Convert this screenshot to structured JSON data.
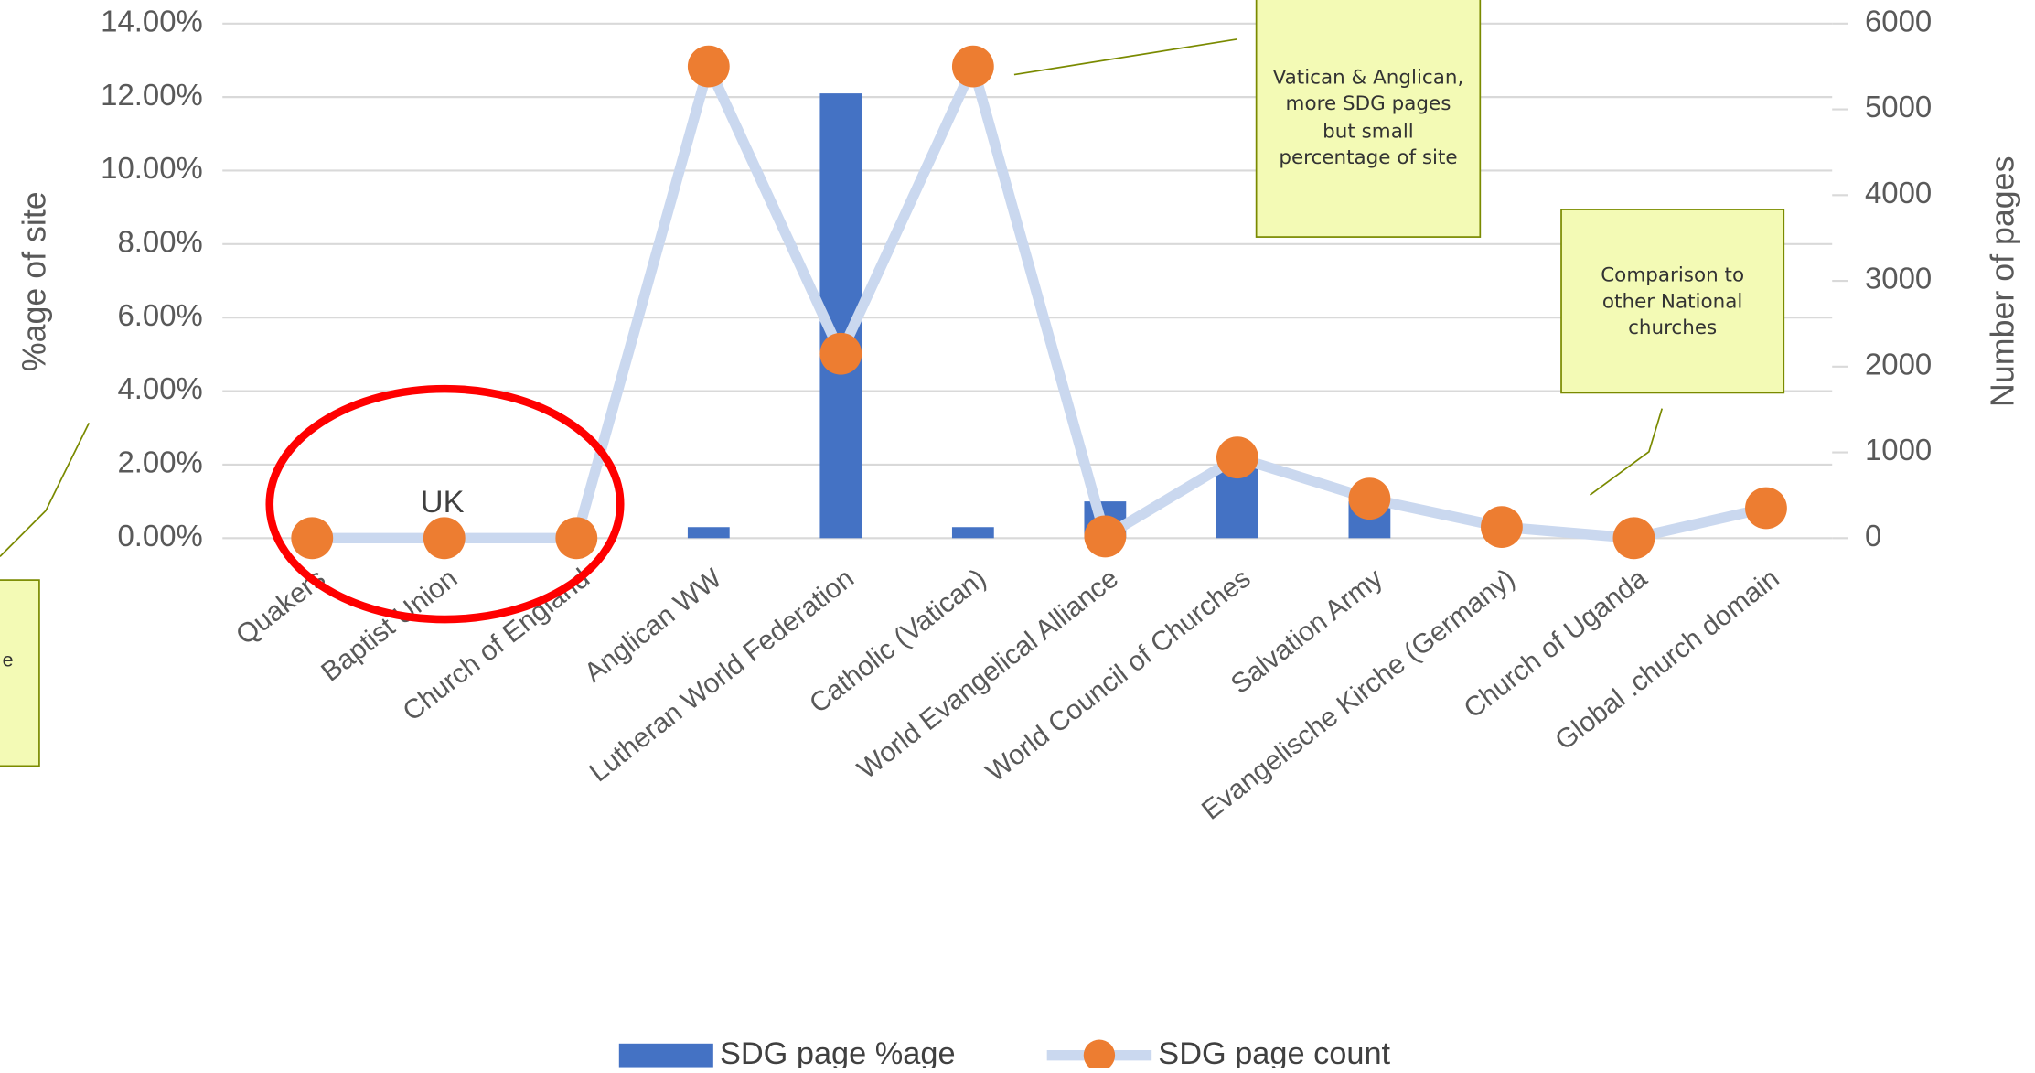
{
  "chart_data": {
    "type": "bar",
    "categories": [
      "Quakers",
      "Baptist Union",
      "Church of England",
      "Anglican WW",
      "Lutheran World Federation",
      "Catholic (Vatican)",
      "World Evangelical Alliance",
      "World Council of Churches",
      "Salvation Army",
      "Evangelische Kirche (Germany)",
      "Church of Uganda",
      "Global .church domain"
    ],
    "series": [
      {
        "name": "SDG page %age",
        "type": "bar",
        "color": "#4472c4",
        "values": [
          0,
          0,
          0,
          0.3,
          12.1,
          0.3,
          1.0,
          2.0,
          1.0,
          0,
          0,
          0
        ]
      },
      {
        "name": "SDG page count",
        "type": "line",
        "axis": "y2",
        "color": "#ed7d31",
        "line_color": "#cad8ef",
        "values": [
          0,
          0,
          0,
          5500,
          2150,
          5500,
          20,
          940,
          460,
          130,
          0,
          350
        ]
      }
    ],
    "ylabel": "%age of site",
    "y2label": "Number of pages",
    "ylim": [
      0,
      14
    ],
    "yticks": [
      {
        "value": 0,
        "label": "0.00%"
      },
      {
        "value": 2,
        "label": "2.00%"
      },
      {
        "value": 4,
        "label": "4.00%"
      },
      {
        "value": 6,
        "label": "6.00%"
      },
      {
        "value": 8,
        "label": "8.00%"
      },
      {
        "value": 10,
        "label": "10.00%"
      },
      {
        "value": 12,
        "label": "12.00%"
      },
      {
        "value": 14,
        "label": "14.00%"
      }
    ],
    "y2lim": [
      0,
      6000
    ],
    "y2ticks": [
      0,
      1000,
      2000,
      3000,
      4000,
      5000,
      6000
    ],
    "grid": true,
    "legend": "bottom",
    "annotations": [
      {
        "text": "Vatican & Anglican, more SDG pages but small percentage of site"
      },
      {
        "text": "Comparison to other National churches"
      },
      {
        "text": "e"
      },
      {
        "text": "UK"
      }
    ]
  }
}
